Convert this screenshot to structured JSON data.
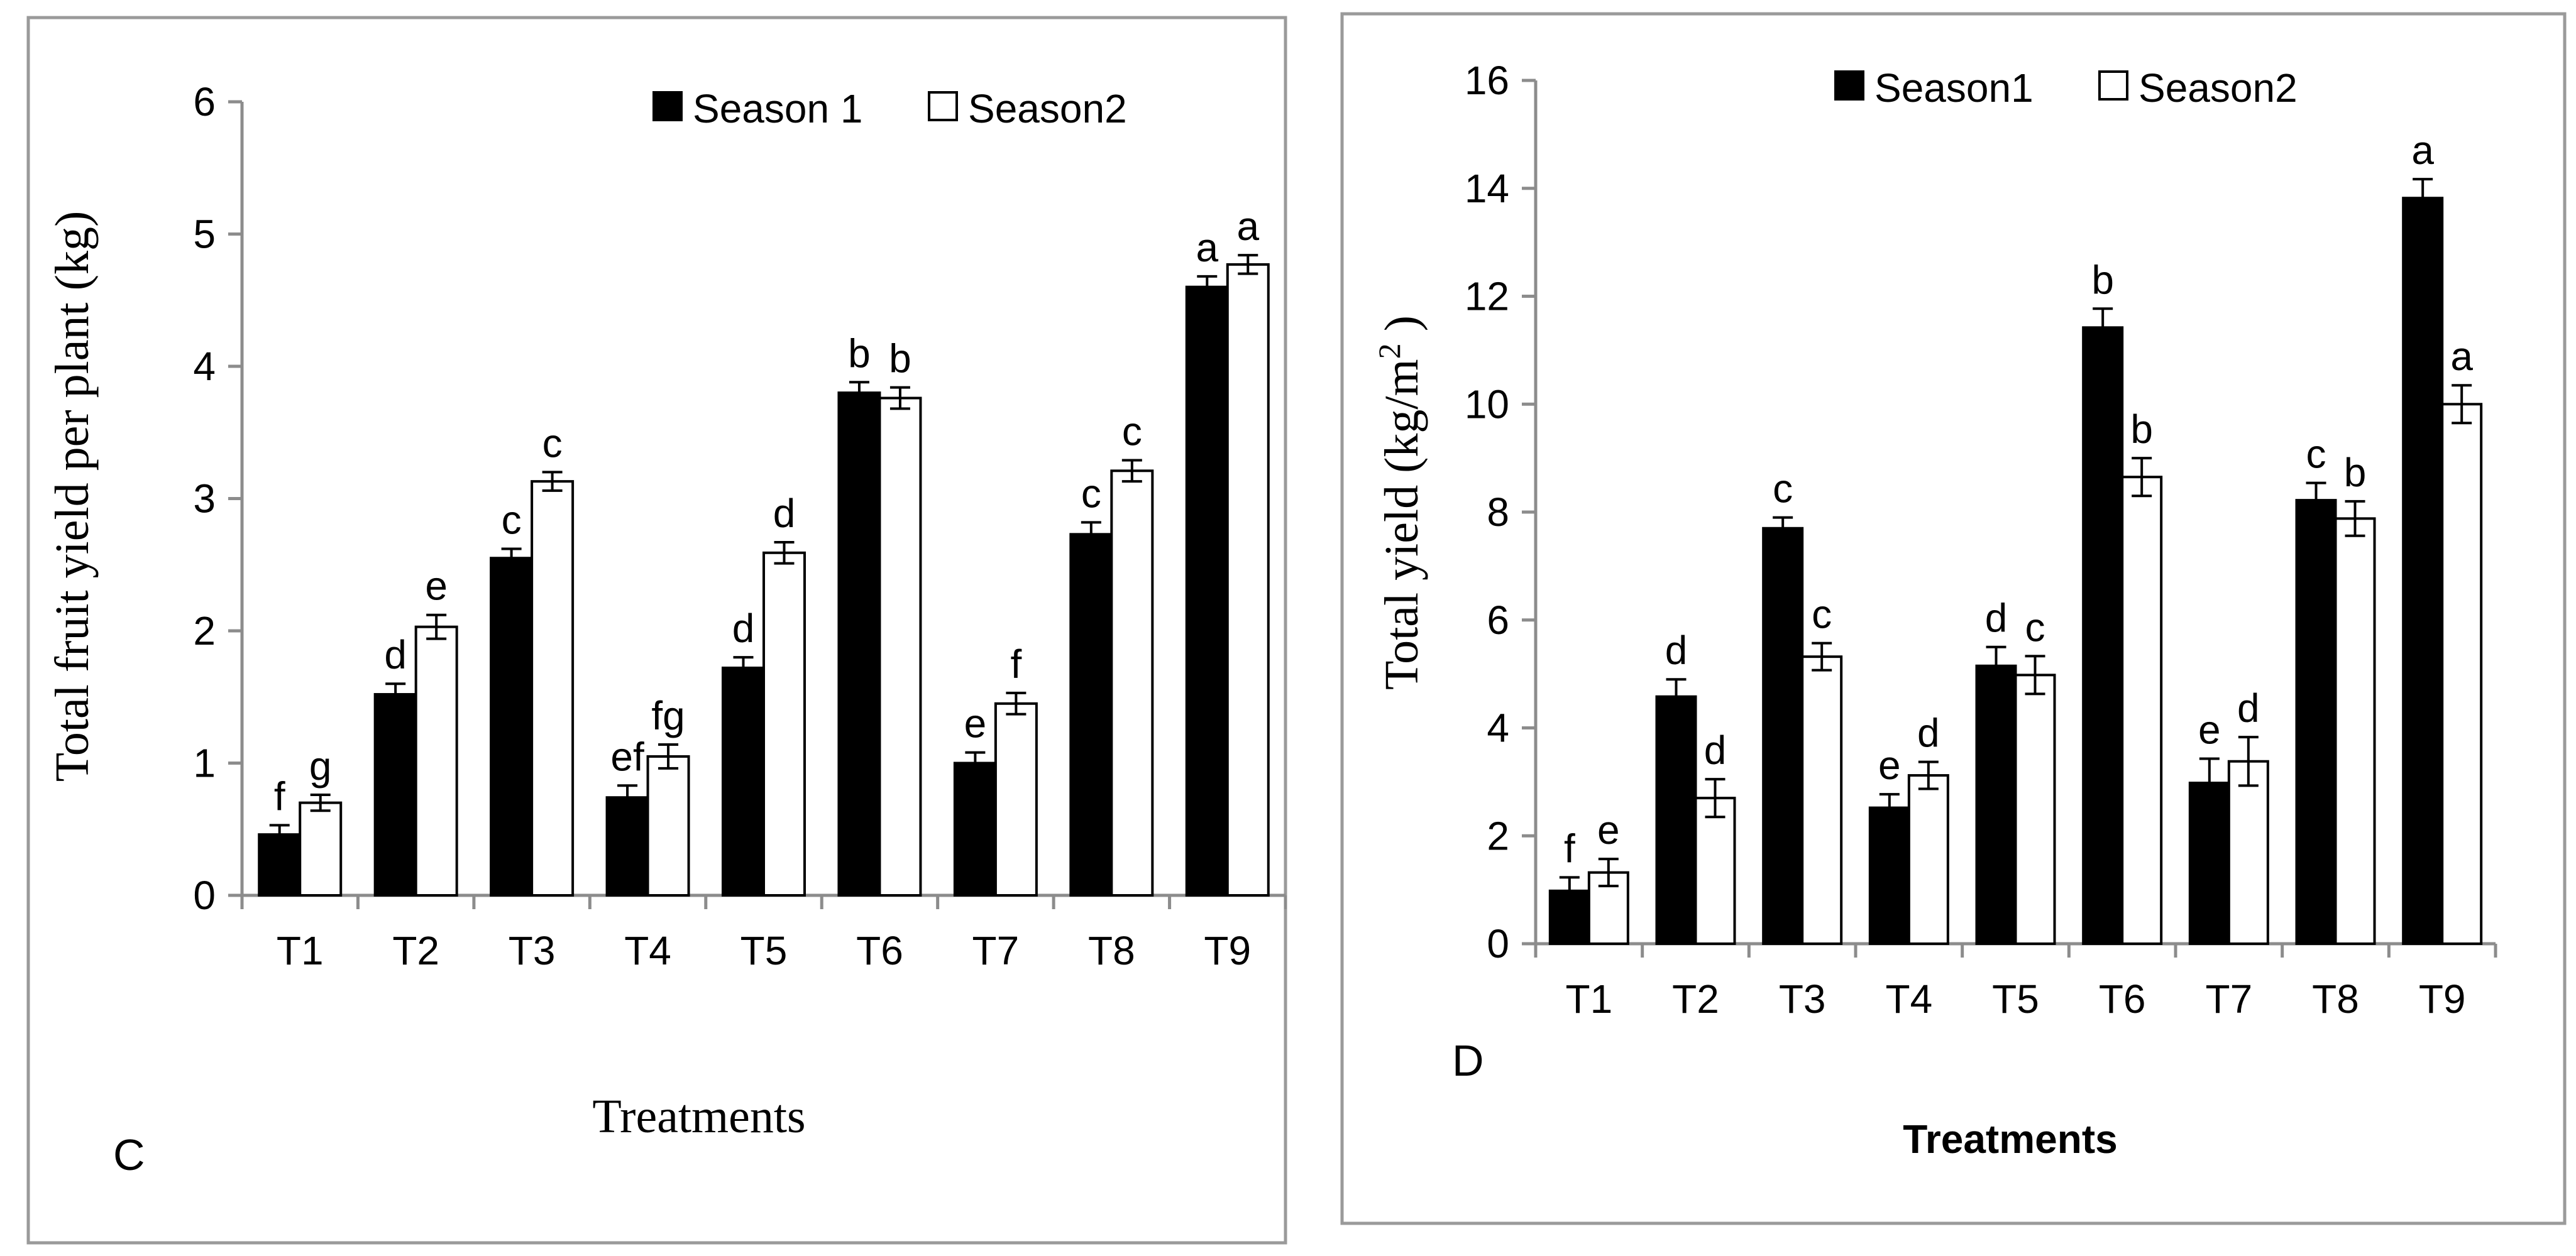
{
  "chart_data": [
    {
      "type": "bar",
      "panel_label": "C",
      "categories": [
        "T1",
        "T2",
        "T3",
        "T4",
        "T5",
        "T6",
        "T7",
        "T8",
        "T9"
      ],
      "series": [
        {
          "name": "Season 1",
          "color": "#000000",
          "values": [
            0.46,
            1.52,
            2.55,
            0.74,
            1.72,
            3.8,
            1.0,
            2.73,
            4.6
          ],
          "errors": [
            0.07,
            0.08,
            0.07,
            0.09,
            0.08,
            0.08,
            0.08,
            0.09,
            0.08
          ],
          "letters": [
            "f",
            "d",
            "c",
            "ef",
            "d",
            "b",
            "e",
            "c",
            "a"
          ]
        },
        {
          "name": "Season2",
          "color": "#ffffff",
          "values": [
            0.7,
            2.03,
            3.13,
            1.05,
            2.59,
            3.76,
            1.45,
            3.21,
            4.77
          ],
          "errors": [
            0.06,
            0.09,
            0.07,
            0.09,
            0.08,
            0.08,
            0.08,
            0.08,
            0.07
          ],
          "letters": [
            "g",
            "e",
            "c",
            "fg",
            "d",
            "b",
            "f",
            "c",
            "a"
          ]
        }
      ],
      "title": "",
      "xlabel": "Treatments",
      "ylabel": "Total fruit yield per plant (kg)",
      "ylim": [
        0,
        6
      ],
      "yticks": [
        0,
        1,
        2,
        3,
        4,
        5,
        6
      ],
      "grid": false,
      "legend_position": "top-right"
    },
    {
      "type": "bar",
      "panel_label": "D",
      "categories": [
        "T1",
        "T2",
        "T3",
        "T4",
        "T5",
        "T6",
        "T7",
        "T8",
        "T9"
      ],
      "series": [
        {
          "name": "Season1",
          "color": "#000000",
          "values": [
            0.98,
            4.58,
            7.7,
            2.52,
            5.15,
            11.42,
            2.98,
            8.22,
            13.82
          ],
          "errors": [
            0.25,
            0.32,
            0.2,
            0.25,
            0.35,
            0.35,
            0.45,
            0.32,
            0.35
          ],
          "letters": [
            "f",
            "d",
            "c",
            "e",
            "d",
            "b",
            "e",
            "c",
            "a"
          ]
        },
        {
          "name": "Season2",
          "color": "#ffffff",
          "values": [
            1.32,
            2.7,
            5.32,
            3.12,
            4.98,
            8.65,
            3.38,
            7.88,
            10.0
          ],
          "errors": [
            0.25,
            0.35,
            0.25,
            0.25,
            0.35,
            0.35,
            0.45,
            0.32,
            0.35
          ],
          "letters": [
            "e",
            "d",
            "c",
            "d",
            "c",
            "b",
            "d",
            "b",
            "a"
          ]
        }
      ],
      "title": "",
      "xlabel": "Treatments",
      "ylabel_main": "Total yield (kg/m",
      "ylabel_sup": "2",
      "ylabel_end": " )",
      "ylim": [
        0,
        16
      ],
      "yticks": [
        0,
        2,
        4,
        6,
        8,
        10,
        12,
        14,
        16
      ],
      "grid": false,
      "legend_position": "top-center"
    }
  ]
}
